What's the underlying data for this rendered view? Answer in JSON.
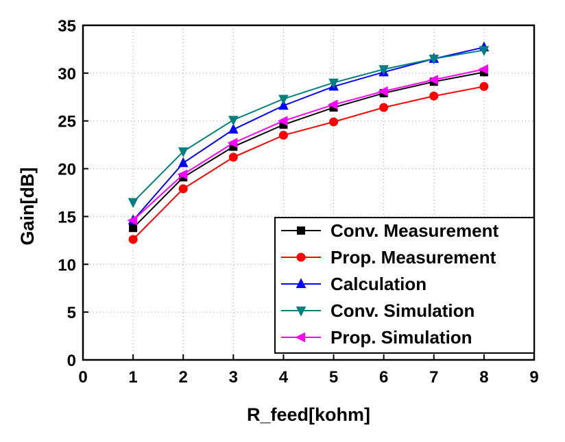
{
  "chart_data": {
    "type": "line",
    "title": "",
    "xlabel": "R_feed[kohm]",
    "ylabel": "Gain[dB]",
    "xlim": [
      0,
      9
    ],
    "ylim": [
      0,
      35
    ],
    "xticks": [
      0,
      1,
      2,
      3,
      4,
      5,
      6,
      7,
      8,
      9
    ],
    "yticks": [
      0,
      5,
      10,
      15,
      20,
      25,
      30,
      35
    ],
    "grid": "dotted",
    "legend_position": "bottom-right",
    "x": [
      1,
      2,
      3,
      4,
      5,
      6,
      7,
      8
    ],
    "series": [
      {
        "name": "Conv. Measurement",
        "color": "#000000",
        "marker": "square",
        "values": [
          13.8,
          19.1,
          22.3,
          24.6,
          26.4,
          27.9,
          29.1,
          30.1
        ]
      },
      {
        "name": "Prop. Measurement",
        "color": "#ff0000",
        "marker": "circle",
        "values": [
          12.6,
          17.9,
          21.2,
          23.5,
          24.9,
          26.4,
          27.6,
          28.6
        ]
      },
      {
        "name": "Calculation",
        "color": "#0000ff",
        "marker": "triangle-up",
        "values": [
          14.6,
          20.6,
          24.1,
          26.6,
          28.6,
          30.1,
          31.5,
          32.7
        ]
      },
      {
        "name": "Conv. Simulation",
        "color": "#007f7f",
        "marker": "triangle-down",
        "values": [
          16.5,
          21.8,
          25.1,
          27.3,
          29.0,
          30.4,
          31.5,
          32.4
        ]
      },
      {
        "name": "Prop. Simulation",
        "color": "#ff00ff",
        "marker": "triangle-left",
        "values": [
          14.6,
          19.4,
          22.7,
          25.0,
          26.7,
          28.1,
          29.3,
          30.4
        ]
      }
    ]
  }
}
